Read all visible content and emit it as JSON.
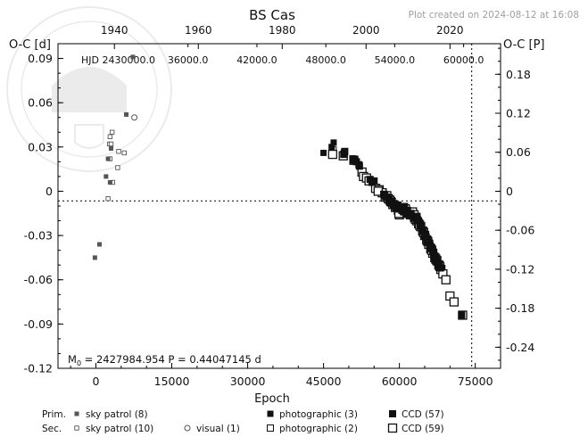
{
  "chart_data": {
    "type": "scatter",
    "title": "BS  Cas",
    "plot_created": "Plot created on 2024-08-12 at 16:08",
    "ylabel_left": "O-C [d]",
    "ylabel_right": "O-C [P]",
    "xlabel": "Epoch",
    "hjd_label": "HJD 2430000.0",
    "elements": "M₀ =  2427984.954     P = 0.44047145 d",
    "xlim": [
      -7500,
      80000
    ],
    "ylim": [
      -0.12,
      0.1
    ],
    "x_ticks": [
      0,
      15000,
      30000,
      45000,
      60000,
      75000
    ],
    "x_tick_labels": [
      "0",
      "15000",
      "30000",
      "45000",
      "60000",
      "75000"
    ],
    "y_ticks": [
      0.09,
      0.06,
      0.03,
      0,
      -0.03,
      -0.06,
      -0.09,
      -0.12
    ],
    "y_tick_labels": [
      "0.09",
      "0.06",
      "0.03",
      "0",
      "-0.03",
      "-0.06",
      "-0.09",
      "-0.12"
    ],
    "year_ticks": [
      {
        "label": "1940",
        "epoch": 3650
      },
      {
        "label": "1960",
        "epoch": 20240
      },
      {
        "label": "1980",
        "epoch": 36830
      },
      {
        "label": "2000",
        "epoch": 53410
      },
      {
        "label": "2020",
        "epoch": 70000
      }
    ],
    "hjd_ticks": [
      {
        "label": "36000.0",
        "epoch": 18200
      },
      {
        "label": "42000.0",
        "epoch": 31830
      },
      {
        "label": "48000.0",
        "epoch": 45450
      },
      {
        "label": "54000.0",
        "epoch": 59070
      },
      {
        "label": "60000.0",
        "epoch": 72700
      }
    ],
    "phase_ticks": [
      0.18,
      0.12,
      0.06,
      0,
      -0.06,
      -0.12,
      -0.18,
      -0.24
    ],
    "phase_tick_labels": [
      "0.18",
      "0.12",
      "0.06",
      "0",
      "-0.06",
      "-0.12",
      "-0.18",
      "-0.24"
    ],
    "now_epoch": 74300,
    "legend": {
      "prim_label": "Prim.",
      "sec_label": "Sec.",
      "entries": [
        {
          "key": "sky_prim",
          "label": "sky patrol (8)"
        },
        {
          "key": "sky_sec",
          "label": "sky patrol (10)"
        },
        {
          "key": "visual",
          "label": "visual (1)"
        },
        {
          "key": "photo_prim",
          "label": "photographic (3)"
        },
        {
          "key": "photo_sec",
          "label": "photographic (2)"
        },
        {
          "key": "ccd_prim",
          "label": "CCD (57)"
        },
        {
          "key": "ccd_sec",
          "label": "CCD (59)"
        }
      ]
    },
    "series": [
      {
        "key": "sky_prim",
        "name": "sky patrol (8)",
        "points": [
          [
            -200,
            -0.045
          ],
          [
            700,
            -0.036
          ],
          [
            2000,
            0.01
          ],
          [
            2800,
            0.006
          ],
          [
            3000,
            0.029
          ],
          [
            6000,
            0.052
          ],
          [
            7300,
            0.091
          ],
          [
            2400,
            0.022
          ]
        ]
      },
      {
        "key": "sky_sec",
        "name": "sky patrol (10)",
        "points": [
          [
            2400,
            -0.005
          ],
          [
            3300,
            0.006
          ],
          [
            4300,
            0.016
          ],
          [
            4500,
            0.027
          ],
          [
            5600,
            0.026
          ],
          [
            2800,
            0.022
          ],
          [
            2700,
            0.032
          ],
          [
            3000,
            0.032
          ],
          [
            3200,
            0.04
          ],
          [
            2800,
            0.037
          ]
        ]
      },
      {
        "key": "visual",
        "name": "visual (1)",
        "points": [
          [
            7600,
            0.05
          ]
        ]
      },
      {
        "key": "photo_prim",
        "name": "photographic (3)",
        "points": [
          [
            45000,
            0.026
          ],
          [
            46600,
            0.03
          ],
          [
            47000,
            0.033
          ]
        ]
      },
      {
        "key": "photo_sec",
        "name": "photographic (2)",
        "points": [
          [
            46700,
            0.025
          ],
          [
            46900,
            0.028
          ]
        ]
      },
      {
        "key": "ccd_prim",
        "name": "CCD (57)",
        "points": [
          [
            49000,
            0.025
          ],
          [
            49100,
            0.026
          ],
          [
            49200,
            0.027
          ],
          [
            50800,
            0.022
          ],
          [
            51000,
            0.021
          ],
          [
            51500,
            0.02
          ],
          [
            52000,
            0.018
          ],
          [
            52100,
            0.017
          ],
          [
            54200,
            0.008
          ],
          [
            54600,
            0.006
          ],
          [
            55000,
            0.007
          ],
          [
            56900,
            -0.002
          ],
          [
            57100,
            -0.003
          ],
          [
            57500,
            -0.004
          ],
          [
            58000,
            -0.006
          ],
          [
            58300,
            -0.008
          ],
          [
            58600,
            -0.007
          ],
          [
            59000,
            -0.01
          ],
          [
            59300,
            -0.011
          ],
          [
            59600,
            -0.01
          ],
          [
            59900,
            -0.012
          ],
          [
            60200,
            -0.012
          ],
          [
            60500,
            -0.013
          ],
          [
            60800,
            -0.014
          ],
          [
            61000,
            -0.011
          ],
          [
            61300,
            -0.015
          ],
          [
            61600,
            -0.013
          ],
          [
            61900,
            -0.016
          ],
          [
            62300,
            -0.015
          ],
          [
            62700,
            -0.017
          ],
          [
            63000,
            -0.018
          ],
          [
            63300,
            -0.019
          ],
          [
            63500,
            -0.017
          ],
          [
            63800,
            -0.02
          ],
          [
            64100,
            -0.023
          ],
          [
            64400,
            -0.025
          ],
          [
            64700,
            -0.027
          ],
          [
            65000,
            -0.029
          ],
          [
            65300,
            -0.031
          ],
          [
            65600,
            -0.033
          ],
          [
            65900,
            -0.035
          ],
          [
            66100,
            -0.037
          ],
          [
            66400,
            -0.039
          ],
          [
            66600,
            -0.041
          ],
          [
            66800,
            -0.043
          ],
          [
            67000,
            -0.044
          ],
          [
            67200,
            -0.046
          ],
          [
            67400,
            -0.048
          ],
          [
            67600,
            -0.049
          ],
          [
            67800,
            -0.05
          ],
          [
            67900,
            -0.051
          ],
          [
            68100,
            -0.052
          ],
          [
            64900,
            -0.03
          ],
          [
            65500,
            -0.034
          ],
          [
            66300,
            -0.038
          ],
          [
            72300,
            -0.084
          ],
          [
            58800,
            -0.009
          ]
        ]
      },
      {
        "key": "ccd_sec",
        "name": "CCD (59)",
        "points": [
          [
            46800,
            0.025
          ],
          [
            48900,
            0.024
          ],
          [
            51000,
            0.021
          ],
          [
            52600,
            0.013
          ],
          [
            52900,
            0.01
          ],
          [
            53500,
            0.009
          ],
          [
            54000,
            0.007
          ],
          [
            55300,
            0.002
          ],
          [
            56000,
            0.001
          ],
          [
            56600,
            -0.001
          ],
          [
            57200,
            -0.004
          ],
          [
            57800,
            -0.005
          ],
          [
            58300,
            -0.007
          ],
          [
            58700,
            -0.009
          ],
          [
            59200,
            -0.011
          ],
          [
            59500,
            -0.01
          ],
          [
            59800,
            -0.013
          ],
          [
            60000,
            -0.016
          ],
          [
            60300,
            -0.012
          ],
          [
            60600,
            -0.014
          ],
          [
            61000,
            -0.013
          ],
          [
            61400,
            -0.015
          ],
          [
            61800,
            -0.014
          ],
          [
            62200,
            -0.016
          ],
          [
            62600,
            -0.014
          ],
          [
            63000,
            -0.018
          ],
          [
            63400,
            -0.02
          ],
          [
            63800,
            -0.022
          ],
          [
            64200,
            -0.024
          ],
          [
            64600,
            -0.027
          ],
          [
            65000,
            -0.03
          ],
          [
            65400,
            -0.033
          ],
          [
            65800,
            -0.036
          ],
          [
            66200,
            -0.039
          ],
          [
            66600,
            -0.042
          ],
          [
            67000,
            -0.045
          ],
          [
            67400,
            -0.047
          ],
          [
            67800,
            -0.05
          ],
          [
            68200,
            -0.053
          ],
          [
            68600,
            -0.056
          ],
          [
            69200,
            -0.06
          ],
          [
            70000,
            -0.071
          ],
          [
            70800,
            -0.075
          ],
          [
            72500,
            -0.084
          ],
          [
            60200,
            -0.011
          ],
          [
            60800,
            -0.011
          ],
          [
            61200,
            -0.012
          ],
          [
            59900,
            -0.015
          ],
          [
            62900,
            -0.016
          ],
          [
            63200,
            -0.019
          ],
          [
            64000,
            -0.023
          ],
          [
            64800,
            -0.028
          ],
          [
            65600,
            -0.034
          ],
          [
            66400,
            -0.04
          ],
          [
            67200,
            -0.046
          ],
          [
            68000,
            -0.051
          ],
          [
            57500,
            -0.003
          ],
          [
            58100,
            -0.006
          ],
          [
            55800,
            0.0
          ]
        ]
      }
    ]
  }
}
